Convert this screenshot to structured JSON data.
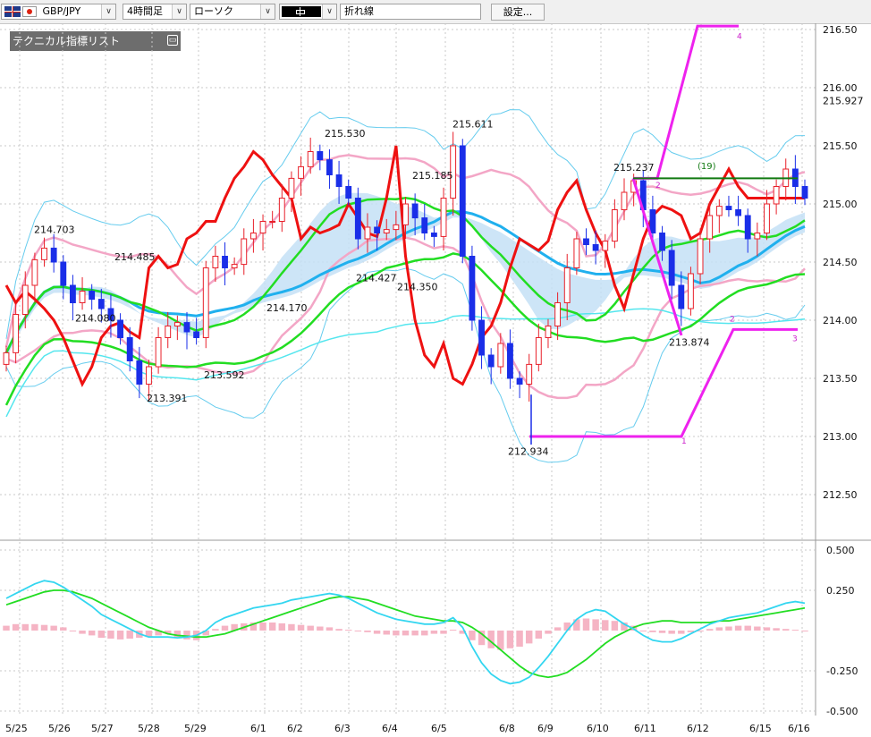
{
  "toolbar": {
    "pair": "GBP/JPY",
    "timeframe": "4時間足",
    "chart_style": "ローソク",
    "line_type": "折れ線",
    "settings_label": "設定..."
  },
  "indicator_panel": {
    "title": "テクニカル指標リスト"
  },
  "colors": {
    "bull_candle": "#e8202a",
    "bear_candle": "#1a2ee8",
    "ma_red": "#ee1111",
    "ma_green": "#22dd22",
    "ma_blue": "#20b0ee",
    "bollinger_outer": "#66ccee",
    "bollinger_inner": "#f3a6c6",
    "zigzag": "#ee22ee",
    "ichimoku_cloud": "#c4e0f6",
    "ichimoku_cloud_alt": "#f8d4e0"
  },
  "chart_data": [
    {
      "type": "line",
      "subtype": "candlestick",
      "y_axis_labels": [
        "216.50",
        "216.00",
        "215.927",
        "215.50",
        "215.00",
        "214.50",
        "214.00",
        "213.50",
        "213.00",
        "212.50"
      ],
      "current_price": 215.927,
      "ylim": [
        212.2,
        216.6
      ],
      "x_ticks": [
        "5/25",
        "5/26",
        "5/27",
        "5/28",
        "5/29",
        "6/1",
        "6/2",
        "6/3",
        "6/4",
        "6/5",
        "6/8",
        "6/9",
        "6/10",
        "6/11",
        "6/12",
        "6/15",
        "6/16"
      ],
      "price_annotations": [
        {
          "label": "214.703",
          "value": 214.703
        },
        {
          "label": "214.485",
          "value": 214.485
        },
        {
          "label": "214.080",
          "value": 214.08
        },
        {
          "label": "213.391",
          "value": 213.391
        },
        {
          "label": "213.592",
          "value": 213.592
        },
        {
          "label": "214.170",
          "value": 214.17
        },
        {
          "label": "215.530",
          "value": 215.53
        },
        {
          "label": "214.427",
          "value": 214.427
        },
        {
          "label": "214.350",
          "value": 214.35
        },
        {
          "label": "215.185",
          "value": 215.185
        },
        {
          "label": "215.611",
          "value": 215.611
        },
        {
          "label": "212.934",
          "value": 212.934
        },
        {
          "label": "215.237",
          "value": 215.237
        },
        {
          "label": "213.874",
          "value": 213.874
        }
      ],
      "zigzag_labels": [
        "1",
        "2",
        "3",
        "4"
      ],
      "zigzag_count_label": "(19)",
      "close": [
        213.72,
        214.05,
        214.3,
        214.52,
        214.62,
        214.5,
        214.3,
        214.15,
        214.25,
        214.18,
        214.1,
        214.0,
        213.85,
        213.65,
        213.45,
        213.6,
        213.85,
        213.95,
        213.98,
        213.9,
        213.85,
        214.45,
        214.55,
        214.45,
        214.48,
        214.7,
        214.75,
        214.85,
        214.85,
        215.05,
        215.22,
        215.32,
        215.45,
        215.38,
        215.25,
        215.15,
        215.05,
        214.7,
        214.8,
        214.75,
        214.78,
        214.82,
        215.0,
        214.88,
        214.75,
        214.72,
        215.05,
        215.5,
        214.55,
        214.0,
        213.7,
        213.6,
        213.8,
        213.5,
        213.45,
        213.62,
        213.85,
        213.95,
        214.15,
        214.45,
        214.7,
        214.65,
        214.6,
        214.68,
        214.95,
        215.1,
        215.2,
        214.95,
        214.75,
        214.6,
        214.3,
        214.1,
        214.4,
        214.7,
        214.9,
        214.98,
        214.95,
        214.9,
        214.7,
        214.75,
        215.0,
        215.15,
        215.3,
        215.15,
        215.05
      ],
      "indicator_axis_labels": [
        "0.500",
        "0.250",
        "-0.250",
        "-0.500"
      ],
      "indicator": {
        "type": "macd",
        "ylim": [
          -0.5,
          0.5
        ],
        "histogram": [
          0.03,
          0.04,
          0.04,
          0.04,
          0.035,
          0.03,
          0.02,
          0.0,
          -0.02,
          -0.03,
          -0.045,
          -0.05,
          -0.055,
          -0.05,
          -0.045,
          -0.04,
          -0.03,
          -0.02,
          -0.04,
          -0.055,
          -0.06,
          -0.03,
          0.01,
          0.03,
          0.04,
          0.045,
          0.05,
          0.05,
          0.05,
          0.045,
          0.04,
          0.035,
          0.03,
          0.025,
          0.02,
          0.01,
          0.005,
          -0.005,
          -0.01,
          -0.02,
          -0.025,
          -0.03,
          -0.03,
          -0.03,
          -0.03,
          -0.02,
          -0.02,
          0.005,
          -0.02,
          -0.06,
          -0.09,
          -0.11,
          -0.12,
          -0.11,
          -0.1,
          -0.08,
          -0.05,
          -0.02,
          0.02,
          0.05,
          0.07,
          0.075,
          0.07,
          0.065,
          0.06,
          0.05,
          0.03,
          0.0,
          -0.01,
          -0.015,
          -0.02,
          -0.02,
          -0.01,
          0.0,
          0.01,
          0.02,
          0.025,
          0.03,
          0.03,
          0.025,
          0.02,
          0.015,
          0.01,
          0.005,
          0.0
        ],
        "macd_line": [
          0.2,
          0.23,
          0.26,
          0.29,
          0.31,
          0.3,
          0.27,
          0.23,
          0.19,
          0.15,
          0.1,
          0.07,
          0.04,
          0.01,
          -0.02,
          -0.04,
          -0.04,
          -0.04,
          -0.045,
          -0.04,
          -0.03,
          0.0,
          0.05,
          0.08,
          0.1,
          0.12,
          0.14,
          0.15,
          0.16,
          0.17,
          0.19,
          0.2,
          0.21,
          0.22,
          0.23,
          0.22,
          0.2,
          0.17,
          0.14,
          0.11,
          0.09,
          0.07,
          0.06,
          0.05,
          0.04,
          0.04,
          0.05,
          0.08,
          0.02,
          -0.1,
          -0.2,
          -0.27,
          -0.31,
          -0.33,
          -0.32,
          -0.29,
          -0.23,
          -0.16,
          -0.08,
          0.0,
          0.07,
          0.11,
          0.13,
          0.12,
          0.08,
          0.04,
          0.01,
          -0.03,
          -0.06,
          -0.07,
          -0.07,
          -0.05,
          -0.02,
          0.01,
          0.04,
          0.06,
          0.08,
          0.09,
          0.1,
          0.11,
          0.13,
          0.15,
          0.17,
          0.18,
          0.17
        ],
        "signal_line": [
          0.16,
          0.18,
          0.2,
          0.22,
          0.24,
          0.25,
          0.25,
          0.24,
          0.22,
          0.2,
          0.17,
          0.14,
          0.11,
          0.08,
          0.05,
          0.02,
          0.0,
          -0.02,
          -0.03,
          -0.035,
          -0.04,
          -0.04,
          -0.03,
          -0.02,
          0.0,
          0.02,
          0.04,
          0.06,
          0.08,
          0.1,
          0.12,
          0.14,
          0.16,
          0.18,
          0.2,
          0.21,
          0.21,
          0.2,
          0.19,
          0.17,
          0.15,
          0.13,
          0.11,
          0.09,
          0.08,
          0.07,
          0.06,
          0.06,
          0.05,
          0.02,
          -0.02,
          -0.07,
          -0.12,
          -0.17,
          -0.22,
          -0.26,
          -0.28,
          -0.29,
          -0.28,
          -0.26,
          -0.22,
          -0.18,
          -0.13,
          -0.08,
          -0.04,
          -0.01,
          0.02,
          0.04,
          0.05,
          0.06,
          0.06,
          0.05,
          0.05,
          0.05,
          0.05,
          0.06,
          0.06,
          0.07,
          0.08,
          0.09,
          0.1,
          0.11,
          0.12,
          0.13,
          0.14
        ]
      }
    }
  ]
}
